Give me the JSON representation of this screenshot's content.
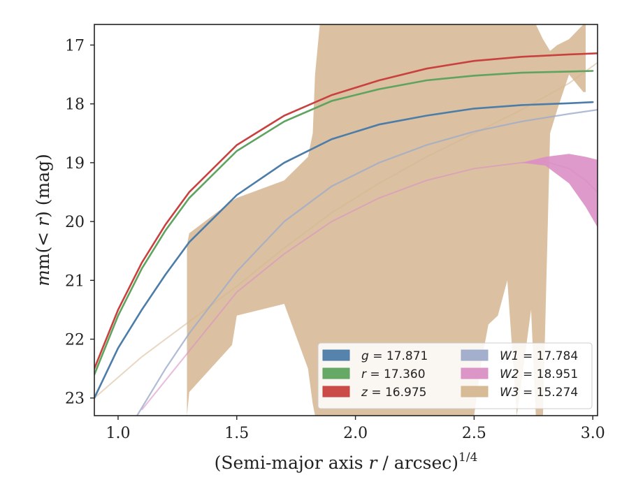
{
  "chart_data": {
    "type": "line",
    "xlabel_prefix": "(Semi-major axis ",
    "xlabel_var": "r",
    "xlabel_suffix": " / arcsec)",
    "xlabel_sup": "1/4",
    "ylabel_prefix": "m(< ",
    "ylabel_var": "r",
    "ylabel_suffix": ") (mag)",
    "xlim": [
      0.9,
      3.02
    ],
    "ylim": [
      23.3,
      16.65
    ],
    "y_inverted": true,
    "grid": false,
    "legend_position": "lower-right",
    "xticks": [
      1.0,
      1.5,
      2.0,
      2.5,
      3.0
    ],
    "xtick_labels": [
      "1.0",
      "1.5",
      "2.0",
      "2.5",
      "3.0"
    ],
    "yticks": [
      17,
      18,
      19,
      20,
      21,
      22,
      23
    ],
    "ytick_labels": [
      "17",
      "18",
      "19",
      "20",
      "21",
      "22",
      "23"
    ],
    "series": [
      {
        "id": "g",
        "legend_var": "g",
        "legend_value": "17.871",
        "color": "#4c7ca8",
        "style": "line",
        "x": [
          0.9,
          1.0,
          1.1,
          1.2,
          1.3,
          1.5,
          1.7,
          1.9,
          2.1,
          2.3,
          2.5,
          2.7,
          2.9,
          3.0
        ],
        "y": [
          23.0,
          22.15,
          21.5,
          20.9,
          20.35,
          19.55,
          19.0,
          18.6,
          18.35,
          18.2,
          18.08,
          18.02,
          17.99,
          17.97
        ]
      },
      {
        "id": "r",
        "legend_var": "r",
        "legend_value": "17.360",
        "color": "#5ea35e",
        "style": "line",
        "x": [
          0.9,
          1.0,
          1.1,
          1.2,
          1.3,
          1.5,
          1.7,
          1.9,
          2.1,
          2.3,
          2.5,
          2.7,
          2.9,
          3.0
        ],
        "y": [
          22.6,
          21.6,
          20.8,
          20.15,
          19.6,
          18.8,
          18.3,
          17.95,
          17.75,
          17.6,
          17.52,
          17.47,
          17.45,
          17.44
        ]
      },
      {
        "id": "z",
        "legend_var": "z",
        "legend_value": "16.975",
        "color": "#c8413f",
        "style": "line",
        "x": [
          0.9,
          1.0,
          1.1,
          1.2,
          1.3,
          1.5,
          1.7,
          1.9,
          2.1,
          2.3,
          2.5,
          2.7,
          2.9,
          3.02
        ],
        "y": [
          22.5,
          21.5,
          20.7,
          20.05,
          19.5,
          18.7,
          18.2,
          17.85,
          17.6,
          17.4,
          17.27,
          17.2,
          17.16,
          17.14
        ]
      },
      {
        "id": "W1",
        "legend_var": "W1",
        "legend_value": "17.784",
        "color": "#9eabc9",
        "style": "line",
        "x": [
          1.08,
          1.2,
          1.3,
          1.5,
          1.7,
          1.9,
          2.1,
          2.3,
          2.5,
          2.7,
          2.9,
          3.02
        ],
        "y": [
          23.3,
          22.5,
          21.9,
          20.85,
          20.0,
          19.4,
          19.0,
          18.7,
          18.47,
          18.3,
          18.17,
          18.1
        ]
      },
      {
        "id": "W2",
        "legend_var": "W2",
        "legend_value": "18.951",
        "color": "#da8fc4",
        "style": "band",
        "x": [
          1.1,
          1.3,
          1.5,
          1.7,
          1.9,
          2.1,
          2.3,
          2.5,
          2.7,
          2.8,
          2.9,
          2.97,
          3.02
        ],
        "y": [
          23.2,
          22.2,
          21.2,
          20.55,
          20.0,
          19.6,
          19.3,
          19.1,
          19.0,
          18.98,
          19.1,
          19.3,
          19.5
        ],
        "band_lower": [
          23.2,
          22.2,
          21.2,
          20.55,
          20.0,
          19.6,
          19.3,
          19.1,
          19.0,
          18.9,
          18.85,
          18.9,
          18.95
        ],
        "band_upper": [
          23.2,
          22.2,
          21.2,
          20.55,
          20.0,
          19.6,
          19.3,
          19.1,
          19.0,
          19.05,
          19.35,
          19.75,
          20.1
        ]
      },
      {
        "id": "W3",
        "legend_var": "W3",
        "legend_value": "15.274",
        "color": "#d5b690",
        "style": "band",
        "x": [
          0.9,
          1.1,
          1.3,
          1.5,
          1.7,
          1.9,
          2.1,
          2.3,
          2.5,
          2.7,
          2.9,
          3.02
        ],
        "y": [
          23.0,
          22.3,
          21.7,
          21.1,
          20.45,
          19.85,
          19.35,
          18.9,
          18.5,
          18.1,
          17.65,
          17.3
        ],
        "band_x": [
          1.29,
          1.3,
          1.48,
          1.5,
          1.7,
          1.8,
          1.82,
          1.83,
          1.85,
          2.0,
          2.2,
          2.4,
          2.5,
          2.53,
          2.56,
          2.6,
          2.64,
          2.68,
          2.74,
          2.76,
          2.79,
          2.82,
          2.85,
          2.9,
          2.96,
          2.97
        ],
        "band_upper": [
          20.4,
          20.2,
          19.65,
          19.6,
          19.3,
          18.9,
          18.5,
          17.5,
          16.65,
          16.65,
          16.65,
          16.65,
          16.65,
          16.65,
          16.65,
          16.65,
          16.65,
          16.65,
          16.65,
          16.65,
          16.9,
          17.1,
          17.0,
          16.9,
          16.65,
          16.65
        ],
        "band_lower": [
          23.3,
          22.9,
          22.1,
          21.6,
          21.4,
          22.5,
          23.1,
          23.3,
          23.3,
          23.3,
          23.3,
          23.3,
          23.3,
          22.4,
          21.75,
          21.6,
          21.0,
          23.3,
          21.5,
          23.3,
          23.3,
          18.5,
          18.1,
          17.5,
          17.8,
          17.8
        ]
      }
    ]
  }
}
